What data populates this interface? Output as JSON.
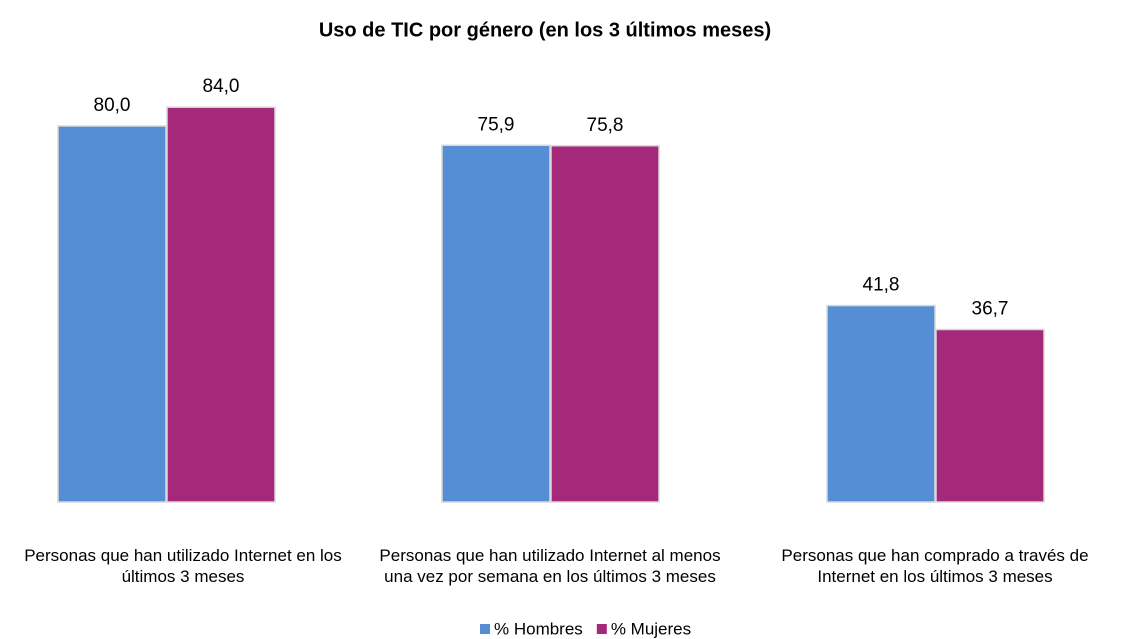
{
  "chart_data": {
    "type": "bar",
    "title": "Uso de TIC por género (en los 3 últimos meses)",
    "categories": [
      "Personas que han utilizado Internet en los últimos 3 meses",
      "Personas que han utilizado Internet al menos una vez por semana en los últimos 3 meses",
      "Personas que han comprado a través de Internet en los últimos 3 meses"
    ],
    "series": [
      {
        "name": "% Hombres",
        "color": "#558ed5",
        "values": [
          80.0,
          75.9,
          41.8
        ],
        "value_labels": [
          "80,0",
          "75,9",
          "41,8"
        ]
      },
      {
        "name": "% Mujeres",
        "color": "#a5297a",
        "values": [
          84.0,
          75.8,
          36.7
        ],
        "value_labels": [
          "84,0",
          "75,8",
          "36,7"
        ]
      }
    ],
    "legend": "bottom"
  }
}
